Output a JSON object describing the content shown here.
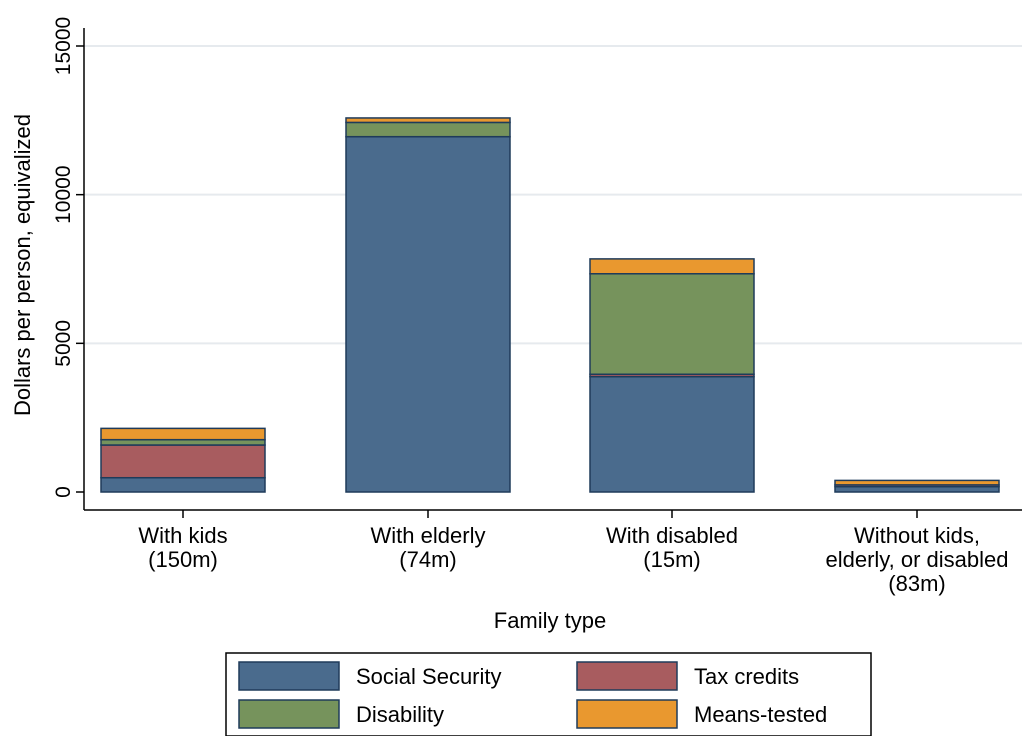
{
  "chart_data": {
    "type": "bar",
    "stacked": true,
    "categories": [
      [
        "With kids",
        "(150m)"
      ],
      [
        "With elderly",
        "(74m)"
      ],
      [
        "With disabled",
        "(15m)"
      ],
      [
        "Without kids,",
        "elderly, or disabled",
        "(83m)"
      ]
    ],
    "series": [
      {
        "name": "Social Security",
        "color": "#4a6b8d",
        "values": [
          480,
          11950,
          3880,
          180
        ]
      },
      {
        "name": "Tax credits",
        "color": "#a85c5f",
        "values": [
          1100,
          0,
          80,
          60
        ]
      },
      {
        "name": "Disability",
        "color": "#76935c",
        "values": [
          180,
          480,
          3380,
          0
        ]
      },
      {
        "name": "Means-tested",
        "color": "#e9982f",
        "values": [
          380,
          150,
          500,
          150
        ]
      }
    ],
    "xlabel": "Family type",
    "ylabel": "Dollars per person, equivalized",
    "ylim": [
      0,
      15000
    ],
    "yticks": [
      "0",
      "5000",
      "10000",
      "15000"
    ],
    "ytick_values": [
      0,
      5000,
      10000,
      15000
    ],
    "grid": true,
    "legend_position": "bottom"
  }
}
